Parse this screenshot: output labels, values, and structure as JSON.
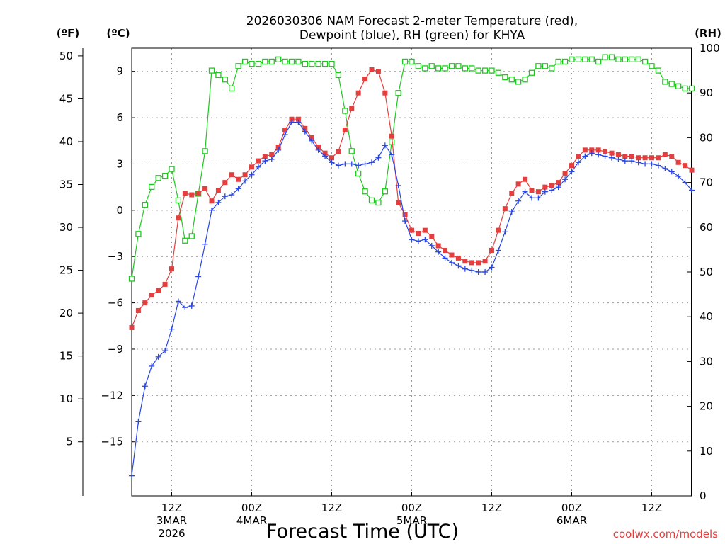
{
  "chart_data": {
    "type": "line",
    "title_line1": "2026030306 NAM Forecast 2-meter Temperature (red),",
    "title_line2": "Dewpoint (blue), RH (green) for KHYA",
    "xlabel": "Forecast Time (UTC)",
    "credit": "coolwx.com/models",
    "units": {
      "f": "(ºF)",
      "c": "(ºC)",
      "rh": "(RH)"
    },
    "x_range_hours": [
      7,
      91
    ],
    "y_range_c": [
      -18.5,
      10.5
    ],
    "y_range_rh": [
      0,
      100
    ],
    "y_ticks_c": [
      9,
      6,
      3,
      0,
      -3,
      -6,
      -9,
      -12,
      -15
    ],
    "y_tick_labels_c": [
      "9",
      "6",
      "3",
      "0",
      "−3",
      "−6",
      "−9",
      "−12",
      "−15"
    ],
    "y_ticks_f": [
      50,
      45,
      40,
      35,
      30,
      25,
      20,
      15,
      10,
      5
    ],
    "y_ticks_rh": [
      100,
      90,
      80,
      70,
      60,
      50,
      40,
      30,
      20,
      10,
      0
    ],
    "x_ticks": [
      {
        "hour": 13,
        "lines": [
          "12Z",
          "3MAR",
          "2026"
        ]
      },
      {
        "hour": 25,
        "lines": [
          "00Z",
          "4MAR"
        ]
      },
      {
        "hour": 37,
        "lines": [
          "12Z"
        ]
      },
      {
        "hour": 49,
        "lines": [
          "00Z",
          "5MAR"
        ]
      },
      {
        "hour": 61,
        "lines": [
          "12Z"
        ]
      },
      {
        "hour": 73,
        "lines": [
          "00Z",
          "6MAR"
        ]
      },
      {
        "hour": 85,
        "lines": [
          "12Z"
        ]
      }
    ],
    "grid": true,
    "series": [
      {
        "name": "Temperature",
        "unit": "C",
        "color": "#e53e3e",
        "marker": "filled-square",
        "x": [
          7,
          8,
          9,
          10,
          11,
          12,
          13,
          14,
          15,
          16,
          17,
          18,
          19,
          20,
          21,
          22,
          23,
          24,
          25,
          26,
          27,
          28,
          29,
          30,
          31,
          32,
          33,
          34,
          35,
          36,
          37,
          38,
          39,
          40,
          41,
          42,
          43,
          44,
          45,
          46,
          47,
          48,
          49,
          50,
          51,
          52,
          53,
          54,
          55,
          56,
          57,
          58,
          59,
          60,
          61,
          62,
          63,
          64,
          65,
          66,
          67,
          68,
          69,
          70,
          71,
          72,
          73,
          74,
          75,
          76,
          77,
          78,
          79,
          80,
          81,
          82,
          83,
          84,
          85,
          86,
          87,
          88,
          89,
          90,
          91
        ],
        "values": [
          -7.6,
          -6.5,
          -6.0,
          -5.5,
          -5.2,
          -4.8,
          -3.8,
          -0.5,
          1.1,
          1.0,
          1.1,
          1.4,
          0.6,
          1.3,
          1.8,
          2.3,
          2.0,
          2.3,
          2.8,
          3.2,
          3.5,
          3.6,
          4.1,
          5.2,
          5.9,
          5.9,
          5.3,
          4.7,
          4.1,
          3.7,
          3.4,
          3.8,
          5.2,
          6.6,
          7.6,
          8.5,
          9.1,
          9.0,
          7.6,
          4.8,
          0.5,
          -0.3,
          -1.3,
          -1.5,
          -1.3,
          -1.7,
          -2.3,
          -2.6,
          -2.9,
          -3.1,
          -3.3,
          -3.4,
          -3.4,
          -3.3,
          -2.6,
          -1.3,
          0.1,
          1.1,
          1.7,
          2.0,
          1.3,
          1.2,
          1.5,
          1.6,
          1.8,
          2.4,
          2.9,
          3.5,
          3.9,
          3.9,
          3.9,
          3.8,
          3.7,
          3.6,
          3.5,
          3.5,
          3.4,
          3.4,
          3.4,
          3.4,
          3.6,
          3.5,
          3.1,
          2.9,
          2.6
        ]
      },
      {
        "name": "Dewpoint",
        "unit": "C",
        "color": "#2846e6",
        "marker": "plus",
        "x": [
          7,
          8,
          9,
          10,
          11,
          12,
          13,
          14,
          15,
          16,
          17,
          18,
          19,
          20,
          21,
          22,
          23,
          24,
          25,
          26,
          27,
          28,
          29,
          30,
          31,
          32,
          33,
          34,
          35,
          36,
          37,
          38,
          39,
          40,
          41,
          42,
          43,
          44,
          45,
          46,
          47,
          48,
          49,
          50,
          51,
          52,
          53,
          54,
          55,
          56,
          57,
          58,
          59,
          60,
          61,
          62,
          63,
          64,
          65,
          66,
          67,
          68,
          69,
          70,
          71,
          72,
          73,
          74,
          75,
          76,
          77,
          78,
          79,
          80,
          81,
          82,
          83,
          84,
          85,
          86,
          87,
          88,
          89,
          90,
          91
        ],
        "values": [
          -17.2,
          -13.7,
          -11.4,
          -10.1,
          -9.5,
          -9.1,
          -7.7,
          -5.9,
          -6.3,
          -6.2,
          -4.3,
          -2.2,
          0.0,
          0.5,
          0.9,
          1.0,
          1.4,
          1.9,
          2.3,
          2.8,
          3.2,
          3.3,
          3.9,
          4.9,
          5.7,
          5.7,
          5.1,
          4.5,
          3.9,
          3.5,
          3.1,
          2.9,
          3.0,
          3.0,
          2.9,
          3.0,
          3.1,
          3.4,
          4.2,
          3.6,
          1.6,
          -0.7,
          -1.9,
          -2.0,
          -1.9,
          -2.3,
          -2.7,
          -3.1,
          -3.4,
          -3.6,
          -3.8,
          -3.9,
          -4.0,
          -4.0,
          -3.7,
          -2.6,
          -1.4,
          -0.1,
          0.6,
          1.2,
          0.8,
          0.8,
          1.2,
          1.3,
          1.5,
          2.0,
          2.5,
          3.1,
          3.5,
          3.7,
          3.6,
          3.5,
          3.4,
          3.3,
          3.2,
          3.2,
          3.1,
          3.0,
          3.0,
          2.9,
          2.7,
          2.5,
          2.2,
          1.8,
          1.3
        ]
      },
      {
        "name": "RH",
        "unit": "%",
        "color": "#1ec81e",
        "marker": "open-square",
        "x": [
          7,
          8,
          9,
          10,
          11,
          12,
          13,
          14,
          15,
          16,
          17,
          18,
          19,
          20,
          21,
          22,
          23,
          24,
          25,
          26,
          27,
          28,
          29,
          30,
          31,
          32,
          33,
          34,
          35,
          36,
          37,
          38,
          39,
          40,
          41,
          42,
          43,
          44,
          45,
          46,
          47,
          48,
          49,
          50,
          51,
          52,
          53,
          54,
          55,
          56,
          57,
          58,
          59,
          60,
          61,
          62,
          63,
          64,
          65,
          66,
          67,
          68,
          69,
          70,
          71,
          72,
          73,
          74,
          75,
          76,
          77,
          78,
          79,
          80,
          81,
          82,
          83,
          84,
          85,
          86,
          87,
          88,
          89,
          90,
          91
        ],
        "values": [
          48.5,
          58.5,
          65,
          69,
          71,
          71.5,
          73,
          66,
          57,
          58,
          67.5,
          77,
          95,
          94,
          93,
          91,
          96,
          97,
          96.5,
          96.5,
          97,
          97,
          97.5,
          97,
          97,
          97,
          96.5,
          96.5,
          96.5,
          96.5,
          96.5,
          94,
          86,
          77,
          72,
          68,
          66,
          65.5,
          68,
          79,
          90,
          97,
          97,
          96,
          95.5,
          96,
          95.5,
          95.5,
          96,
          96,
          95.5,
          95.5,
          95,
          95,
          95,
          94.5,
          93.5,
          93,
          92.5,
          93,
          94.5,
          96,
          96,
          95.5,
          97,
          97,
          97.5,
          97.5,
          97.5,
          97.5,
          97,
          98,
          98,
          97.5,
          97.5,
          97.5,
          97.5,
          97,
          96,
          95,
          92.5,
          92,
          91.5,
          91,
          91
        ]
      }
    ]
  }
}
